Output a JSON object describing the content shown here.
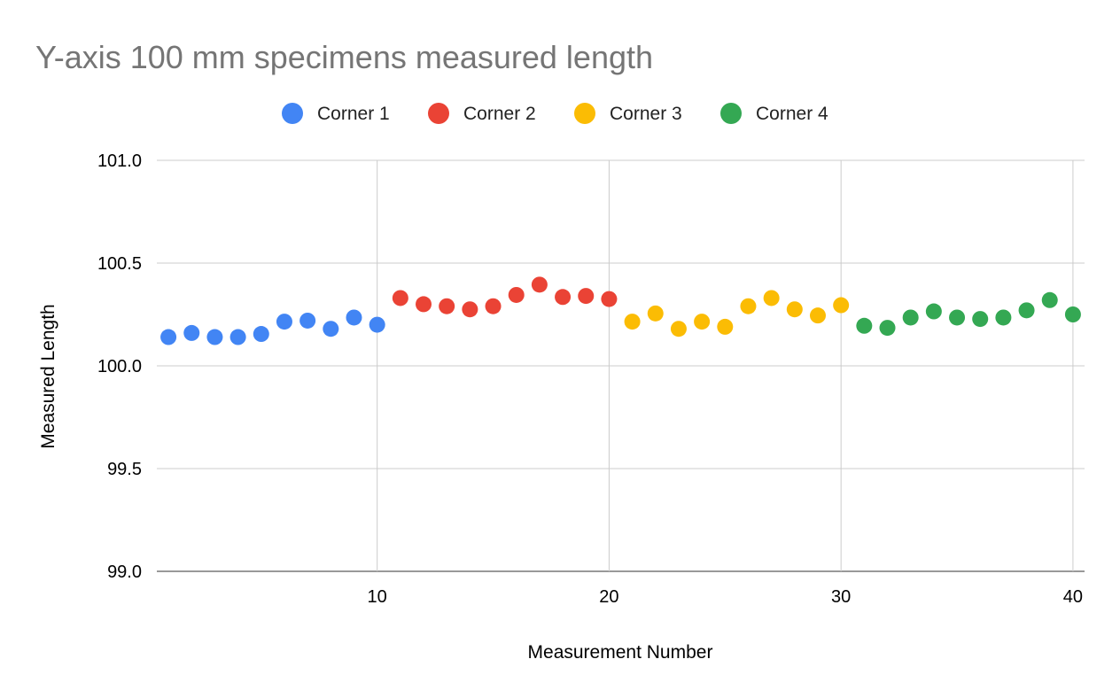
{
  "chart_data": {
    "type": "scatter",
    "title": "Y-axis 100 mm specimens measured length",
    "xlabel": "Measurement Number",
    "ylabel": "Measured Length",
    "xlim": [
      0.5,
      40.5
    ],
    "ylim": [
      99.0,
      101.0
    ],
    "xticks": [
      10,
      20,
      30,
      40
    ],
    "yticks": [
      99.0,
      99.5,
      100.0,
      100.5,
      101.0
    ],
    "ytick_labels": [
      "99.0",
      "99.5",
      "100.0",
      "100.5",
      "101.0"
    ],
    "xtick_labels": [
      "10",
      "20",
      "30",
      "40"
    ],
    "grid": true,
    "legend_position": "top",
    "series": [
      {
        "name": "Corner 1",
        "color": "#4285F4",
        "x": [
          1,
          2,
          3,
          4,
          5,
          6,
          7,
          8,
          9,
          10
        ],
        "y": [
          100.14,
          100.16,
          100.14,
          100.14,
          100.155,
          100.215,
          100.22,
          100.18,
          100.235,
          100.2
        ]
      },
      {
        "name": "Corner 2",
        "color": "#EA4335",
        "x": [
          11,
          12,
          13,
          14,
          15,
          16,
          17,
          18,
          19,
          20
        ],
        "y": [
          100.33,
          100.3,
          100.29,
          100.275,
          100.29,
          100.345,
          100.395,
          100.335,
          100.34,
          100.325
        ]
      },
      {
        "name": "Corner 3",
        "color": "#FBBC04",
        "x": [
          21,
          22,
          23,
          24,
          25,
          26,
          27,
          28,
          29,
          30
        ],
        "y": [
          100.215,
          100.255,
          100.18,
          100.215,
          100.19,
          100.29,
          100.33,
          100.275,
          100.245,
          100.295
        ]
      },
      {
        "name": "Corner 4",
        "color": "#34A853",
        "x": [
          31,
          32,
          33,
          34,
          35,
          36,
          37,
          38,
          39,
          40
        ],
        "y": [
          100.195,
          100.185,
          100.235,
          100.265,
          100.235,
          100.228,
          100.235,
          100.27,
          100.32,
          100.25
        ]
      }
    ]
  }
}
